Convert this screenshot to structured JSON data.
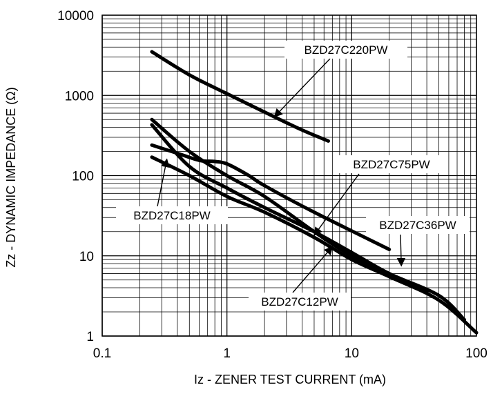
{
  "chart_data": {
    "type": "line",
    "xscale": "log",
    "yscale": "log",
    "xlim": [
      0.1,
      100
    ],
    "ylim": [
      1,
      10000
    ],
    "grid": true,
    "xlabel": "Iz - ZENER TEST CURRENT (mA)",
    "ylabel": "Zz - DYNAMIC IMPEDANCE (Ω)",
    "x_ticks": [
      {
        "value": 0.1,
        "label": "0.1"
      },
      {
        "value": 1,
        "label": "1"
      },
      {
        "value": 10,
        "label": "10"
      },
      {
        "value": 100,
        "label": "100"
      }
    ],
    "y_ticks": [
      {
        "value": 1,
        "label": "1"
      },
      {
        "value": 10,
        "label": "10"
      },
      {
        "value": 100,
        "label": "100"
      },
      {
        "value": 1000,
        "label": "1000"
      },
      {
        "value": 10000,
        "label": "10000"
      }
    ],
    "series": [
      {
        "name": "BZD27C220PW",
        "x": [
          0.25,
          0.5,
          1,
          2,
          4,
          6.5
        ],
        "y": [
          3500,
          1800,
          1050,
          620,
          370,
          270
        ]
      },
      {
        "name": "BZD27C75PW",
        "x": [
          0.25,
          0.4,
          0.6,
          0.8,
          1,
          1.5,
          2,
          5,
          20
        ],
        "y": [
          240,
          190,
          155,
          150,
          140,
          100,
          75,
          35,
          12
        ]
      },
      {
        "name": "BZD27C36PW",
        "x": [
          0.25,
          0.5,
          1,
          2,
          5,
          10,
          20,
          40
        ],
        "y": [
          500,
          200,
          100,
          55,
          20,
          10,
          6,
          3.5
        ]
      },
      {
        "name": "BZD27C18PW",
        "x": [
          0.25,
          0.5,
          1,
          2,
          5,
          10,
          20,
          50,
          100
        ],
        "y": [
          170,
          100,
          55,
          35,
          17,
          9,
          5.5,
          2.8,
          1.1
        ]
      },
      {
        "name": "BZD27C12PW",
        "x": [
          0.25,
          0.5,
          1,
          2,
          5,
          10,
          20,
          50,
          80
        ],
        "y": [
          430,
          130,
          70,
          40,
          20,
          11,
          6,
          3.2,
          1.6
        ]
      }
    ],
    "annotations": [
      {
        "text": "BZD27C220PW",
        "series": "BZD27C220PW",
        "arrow_to": [
          2.4,
          540
        ]
      },
      {
        "text": "BZD27C75PW",
        "series": "BZD27C75PW",
        "arrow_to": [
          5.0,
          18
        ]
      },
      {
        "text": "BZD27C36PW",
        "series": "BZD27C36PW",
        "arrow_to": [
          25,
          7.5
        ]
      },
      {
        "text": "BZD27C18PW",
        "series": "BZD27C18PW",
        "arrow_to": [
          0.33,
          160
        ]
      },
      {
        "text": "BZD27C12PW",
        "series": "BZD27C12PW",
        "arrow_to": [
          7,
          13
        ]
      }
    ]
  }
}
